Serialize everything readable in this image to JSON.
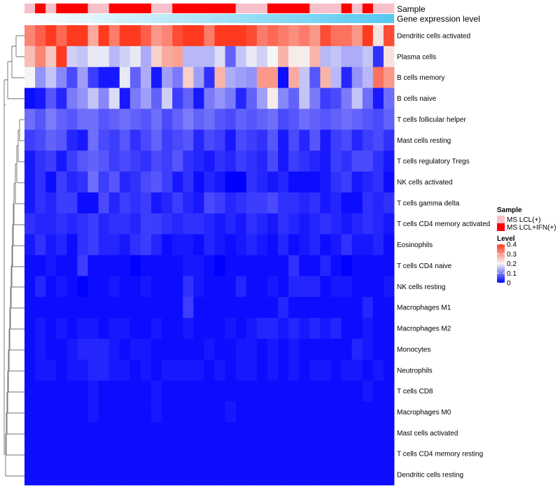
{
  "chart_data": {
    "type": "heatmap",
    "color_scale": {
      "min": 0,
      "max": 0.4,
      "low": "#0000ff",
      "mid": "#f5f5f5",
      "high": "#ff3a1f"
    },
    "annotations": {
      "sample": {
        "label": "Sample",
        "legend_title": "Sample",
        "levels": [
          {
            "name": "MS LCL(+)",
            "color": "#f7c1cb"
          },
          {
            "name": "MS LCL+IFN(+)",
            "color": "#ff0000"
          }
        ],
        "columns": [
          0,
          1,
          0,
          1,
          1,
          1,
          0,
          0,
          1,
          1,
          1,
          1,
          0,
          0,
          1,
          1,
          1,
          1,
          1,
          1,
          0,
          0,
          0,
          1,
          1,
          1,
          1,
          0,
          0,
          0,
          1,
          0,
          1,
          0,
          0
        ]
      },
      "gene_expression": {
        "label": "Gene expression level",
        "range": [
          0,
          1
        ],
        "low_color": "#ffffff",
        "high_color": "#54c8f0"
      }
    },
    "legend": {
      "title": "Level",
      "ticks": [
        0.4,
        0.3,
        0.2,
        0.1,
        0
      ],
      "tick_labels": [
        "0.4",
        "0.3",
        "0.2",
        "0.1",
        "0"
      ]
    },
    "rows": [
      {
        "name": "Dendritic cells activated",
        "values": [
          0.32,
          0.36,
          0.4,
          0.35,
          0.44,
          0.44,
          0.28,
          0.45,
          0.33,
          0.44,
          0.45,
          0.36,
          0.3,
          0.32,
          0.38,
          0.44,
          0.44,
          0.33,
          0.45,
          0.45,
          0.42,
          0.38,
          0.33,
          0.35,
          0.33,
          0.31,
          0.33,
          0.3,
          0.38,
          0.34,
          0.34,
          0.3,
          0.42,
          0.22,
          0.38
        ]
      },
      {
        "name": "Plasma cells",
        "values": [
          0.26,
          0.32,
          0.25,
          0.4,
          0.17,
          0.16,
          0.19,
          0.19,
          0.15,
          0.17,
          0.19,
          0.14,
          0.24,
          0.28,
          0.29,
          0.15,
          0.15,
          0.15,
          0.18,
          0.08,
          0.16,
          0.19,
          0.17,
          0.2,
          0.27,
          0.21,
          0.21,
          0.27,
          0.15,
          0.16,
          0.14,
          0.14,
          0.16,
          0.04,
          0.22
        ]
      },
      {
        "name": "B cells memory",
        "values": [
          0.2,
          0.12,
          0.16,
          0.11,
          0.06,
          0.13,
          0.05,
          0.02,
          0.02,
          0.19,
          0.08,
          0.14,
          0.02,
          0.13,
          0.1,
          0.24,
          0.13,
          0.04,
          0.27,
          0.14,
          0.13,
          0.12,
          0.3,
          0.3,
          0.01,
          0.28,
          0.16,
          0.07,
          0.27,
          0.15,
          0.03,
          0.12,
          0.15,
          0.34,
          0.3
        ]
      },
      {
        "name": "B cells naive",
        "values": [
          0.01,
          0.02,
          0.07,
          0.03,
          0.1,
          0.12,
          0.16,
          0.11,
          0.18,
          0.02,
          0.1,
          0.13,
          0.08,
          0.17,
          0.05,
          0.08,
          0.02,
          0.1,
          0.12,
          0.1,
          0.03,
          0.08,
          0.13,
          0.21,
          0.11,
          0.08,
          0.16,
          0.1,
          0.05,
          0.06,
          0.1,
          0.16,
          0.09,
          0.02,
          0.09
        ]
      },
      {
        "name": "T cells follicular helper",
        "values": [
          0.09,
          0.07,
          0.1,
          0.08,
          0.07,
          0.09,
          0.09,
          0.07,
          0.08,
          0.09,
          0.08,
          0.07,
          0.09,
          0.06,
          0.08,
          0.1,
          0.08,
          0.09,
          0.07,
          0.06,
          0.08,
          0.07,
          0.08,
          0.09,
          0.06,
          0.07,
          0.09,
          0.08,
          0.07,
          0.08,
          0.09,
          0.08,
          0.07,
          0.06,
          0.08
        ]
      },
      {
        "name": "Mast cells resting",
        "values": [
          0.05,
          0.06,
          0.08,
          0.07,
          0.03,
          0.02,
          0.09,
          0.06,
          0.05,
          0.07,
          0.04,
          0.06,
          0.08,
          0.05,
          0.06,
          0.07,
          0.03,
          0.06,
          0.05,
          0.02,
          0.06,
          0.05,
          0.04,
          0.07,
          0.02,
          0.06,
          0.03,
          0.07,
          0.02,
          0.05,
          0.06,
          0.03,
          0.05,
          0.06,
          0.04
        ]
      },
      {
        "name": "T cells regulatory  Tregs",
        "values": [
          0.02,
          0.04,
          0.05,
          0.02,
          0.05,
          0.07,
          0.08,
          0.07,
          0.05,
          0.06,
          0.05,
          0.04,
          0.06,
          0.05,
          0.07,
          0.04,
          0.03,
          0.02,
          0.04,
          0.03,
          0.05,
          0.04,
          0.03,
          0.06,
          0.02,
          0.05,
          0.04,
          0.03,
          0.02,
          0.05,
          0.04,
          0.06,
          0.06,
          0.04,
          0.02
        ]
      },
      {
        "name": "NK cells activated",
        "values": [
          0.02,
          0.04,
          0.01,
          0.05,
          0.03,
          0.04,
          0.09,
          0.05,
          0.07,
          0.03,
          0.04,
          0.06,
          0.07,
          0.05,
          0.02,
          0.04,
          0.01,
          0.03,
          0.02,
          0.0,
          0.0,
          0.04,
          0.03,
          0.02,
          0.03,
          0.01,
          0.01,
          0.01,
          0.02,
          0.04,
          0.05,
          0.02,
          0.03,
          0.04,
          0.01
        ]
      },
      {
        "name": "T cells gamma delta",
        "values": [
          0.02,
          0.04,
          0.03,
          0.05,
          0.05,
          0.01,
          0.01,
          0.06,
          0.03,
          0.05,
          0.04,
          0.05,
          0.02,
          0.03,
          0.05,
          0.03,
          0.02,
          0.06,
          0.05,
          0.03,
          0.04,
          0.05,
          0.05,
          0.06,
          0.04,
          0.04,
          0.03,
          0.04,
          0.02,
          0.03,
          0.01,
          0.01,
          0.04,
          0.03,
          0.04
        ]
      },
      {
        "name": "T cells CD4 memory activated",
        "values": [
          0.04,
          0.03,
          0.03,
          0.04,
          0.03,
          0.04,
          0.05,
          0.03,
          0.04,
          0.04,
          0.03,
          0.05,
          0.05,
          0.04,
          0.03,
          0.04,
          0.04,
          0.03,
          0.02,
          0.03,
          0.02,
          0.04,
          0.03,
          0.02,
          0.04,
          0.03,
          0.02,
          0.03,
          0.04,
          0.03,
          0.02,
          0.03,
          0.04,
          0.03,
          0.02
        ]
      },
      {
        "name": "Eosinophils",
        "values": [
          0.02,
          0.04,
          0.02,
          0.03,
          0.01,
          0.04,
          0.05,
          0.03,
          0.03,
          0.02,
          0.04,
          0.05,
          0.03,
          0.01,
          0.02,
          0.02,
          0.01,
          0.03,
          0.02,
          0.01,
          0.02,
          0.03,
          0.02,
          0.01,
          0.03,
          0.01,
          0.02,
          0.03,
          0.01,
          0.02,
          0.04,
          0.02,
          0.02,
          0.03,
          0.01
        ]
      },
      {
        "name": "T cells CD4 naive",
        "values": [
          0.01,
          0.01,
          0.02,
          0.01,
          0.01,
          0.05,
          0.01,
          0.01,
          0.01,
          0.01,
          0.0,
          0.01,
          0.01,
          0.01,
          0.01,
          0.02,
          0.02,
          0.01,
          0.0,
          0.01,
          0.01,
          0.01,
          0.01,
          0.01,
          0.01,
          0.04,
          0.01,
          0.01,
          0.03,
          0.01,
          0.0,
          0.01,
          0.01,
          0.01,
          0.01
        ]
      },
      {
        "name": "NK cells resting",
        "values": [
          0.01,
          0.03,
          0.01,
          0.02,
          0.01,
          0.0,
          0.01,
          0.01,
          0.02,
          0.01,
          0.01,
          0.02,
          0.01,
          0.01,
          0.01,
          0.04,
          0.02,
          0.01,
          0.01,
          0.01,
          0.03,
          0.01,
          0.01,
          0.02,
          0.01,
          0.03,
          0.03,
          0.03,
          0.01,
          0.02,
          0.02,
          0.01,
          0.01,
          0.01,
          0.02
        ]
      },
      {
        "name": "Macrophages M1",
        "values": [
          0.01,
          0.01,
          0.01,
          0.01,
          0.01,
          0.01,
          0.01,
          0.01,
          0.01,
          0.01,
          0.01,
          0.01,
          0.01,
          0.01,
          0.01,
          0.05,
          0.01,
          0.01,
          0.01,
          0.01,
          0.01,
          0.01,
          0.01,
          0.01,
          0.03,
          0.01,
          0.01,
          0.01,
          0.01,
          0.01,
          0.01,
          0.01,
          0.03,
          0.01,
          0.01
        ]
      },
      {
        "name": "Macrophages M2",
        "values": [
          0.01,
          0.02,
          0.01,
          0.02,
          0.01,
          0.02,
          0.02,
          0.01,
          0.02,
          0.02,
          0.01,
          0.01,
          0.02,
          0.01,
          0.01,
          0.02,
          0.01,
          0.01,
          0.01,
          0.02,
          0.01,
          0.02,
          0.03,
          0.03,
          0.02,
          0.03,
          0.02,
          0.03,
          0.02,
          0.03,
          0.01,
          0.01,
          0.02,
          0.01,
          0.01
        ]
      },
      {
        "name": "Monocytes",
        "values": [
          0.01,
          0.02,
          0.01,
          0.01,
          0.02,
          0.03,
          0.03,
          0.03,
          0.02,
          0.01,
          0.02,
          0.02,
          0.01,
          0.01,
          0.01,
          0.01,
          0.01,
          0.02,
          0.01,
          0.01,
          0.02,
          0.02,
          0.01,
          0.02,
          0.01,
          0.02,
          0.01,
          0.01,
          0.01,
          0.01,
          0.01,
          0.03,
          0.02,
          0.01,
          0.01
        ]
      },
      {
        "name": "Neutrophils",
        "values": [
          0.01,
          0.02,
          0.02,
          0.01,
          0.02,
          0.02,
          0.03,
          0.03,
          0.02,
          0.02,
          0.01,
          0.02,
          0.01,
          0.02,
          0.02,
          0.02,
          0.02,
          0.01,
          0.02,
          0.01,
          0.02,
          0.02,
          0.01,
          0.02,
          0.01,
          0.02,
          0.01,
          0.02,
          0.02,
          0.01,
          0.02,
          0.02,
          0.01,
          0.02,
          0.01
        ]
      },
      {
        "name": "T cells CD8",
        "values": [
          0.01,
          0.01,
          0.01,
          0.01,
          0.01,
          0.01,
          0.02,
          0.01,
          0.01,
          0.01,
          0.01,
          0.01,
          0.02,
          0.01,
          0.01,
          0.01,
          0.01,
          0.01,
          0.01,
          0.01,
          0.01,
          0.01,
          0.01,
          0.01,
          0.01,
          0.01,
          0.01,
          0.01,
          0.01,
          0.01,
          0.01,
          0.01,
          0.02,
          0.01,
          0.01
        ]
      },
      {
        "name": "Macrophages M0",
        "values": [
          0.01,
          0.01,
          0.01,
          0.01,
          0.01,
          0.01,
          0.02,
          0.01,
          0.01,
          0.01,
          0.01,
          0.01,
          0.02,
          0.01,
          0.01,
          0.01,
          0.01,
          0.01,
          0.01,
          0.02,
          0.01,
          0.01,
          0.01,
          0.01,
          0.01,
          0.01,
          0.01,
          0.01,
          0.01,
          0.01,
          0.01,
          0.01,
          0.01,
          0.01,
          0.01
        ]
      },
      {
        "name": "Mast cells activated",
        "values": [
          0.01,
          0.01,
          0.01,
          0.01,
          0.01,
          0.01,
          0.01,
          0.01,
          0.01,
          0.01,
          0.01,
          0.01,
          0.01,
          0.01,
          0.01,
          0.01,
          0.01,
          0.01,
          0.01,
          0.01,
          0.01,
          0.01,
          0.01,
          0.01,
          0.01,
          0.01,
          0.01,
          0.01,
          0.01,
          0.01,
          0.01,
          0.01,
          0.01,
          0.01,
          0.01
        ]
      },
      {
        "name": "T cells CD4 memory resting",
        "values": [
          0.01,
          0.01,
          0.01,
          0.01,
          0.01,
          0.01,
          0.01,
          0.01,
          0.01,
          0.01,
          0.01,
          0.01,
          0.01,
          0.01,
          0.01,
          0.01,
          0.01,
          0.01,
          0.01,
          0.01,
          0.01,
          0.01,
          0.01,
          0.01,
          0.01,
          0.01,
          0.01,
          0.01,
          0.01,
          0.01,
          0.01,
          0.01,
          0.01,
          0.01,
          0.01
        ]
      },
      {
        "name": "Dendritic cells resting",
        "values": [
          0.01,
          0.01,
          0.01,
          0.01,
          0.01,
          0.01,
          0.01,
          0.01,
          0.01,
          0.01,
          0.01,
          0.01,
          0.01,
          0.01,
          0.01,
          0.01,
          0.01,
          0.01,
          0.01,
          0.01,
          0.01,
          0.01,
          0.01,
          0.01,
          0.01,
          0.01,
          0.01,
          0.01,
          0.01,
          0.01,
          0.01,
          0.01,
          0.01,
          0.01,
          0.01
        ]
      }
    ]
  }
}
